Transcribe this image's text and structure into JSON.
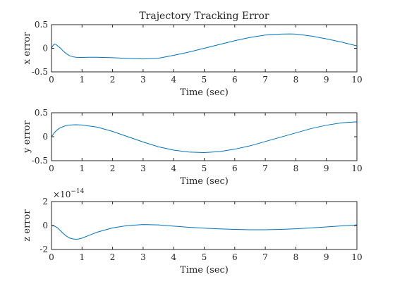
{
  "chart_data": [
    {
      "type": "line",
      "title": "Trajectory Tracking Error",
      "xlabel": "Time (sec)",
      "ylabel": "x error",
      "xlim": [
        0,
        10
      ],
      "ylim": [
        -0.5,
        0.5
      ],
      "xticks": [
        "0",
        "1",
        "2",
        "3",
        "4",
        "5",
        "6",
        "7",
        "8",
        "9",
        "10"
      ],
      "yticks": [
        "-0.5",
        "0",
        "0.5"
      ],
      "exponent_label": "",
      "line_color": "#0072bd",
      "grid": false,
      "series": [
        {
          "x": [
            0,
            0.05,
            0.1,
            0.15,
            0.2,
            0.3,
            0.4,
            0.5,
            0.6,
            0.7,
            0.8,
            0.9,
            1.0,
            1.2,
            1.5,
            2.0,
            2.5,
            3.0,
            3.5,
            4.0,
            4.5,
            5.0,
            5.5,
            6.0,
            6.5,
            7.0,
            7.5,
            7.8,
            8.0,
            8.5,
            9.0,
            9.5,
            10.0
          ],
          "y": [
            0,
            0.06,
            0.09,
            0.08,
            0.05,
            0.0,
            -0.07,
            -0.12,
            -0.16,
            -0.18,
            -0.19,
            -0.195,
            -0.195,
            -0.19,
            -0.19,
            -0.2,
            -0.215,
            -0.225,
            -0.21,
            -0.15,
            -0.08,
            0.0,
            0.08,
            0.16,
            0.23,
            0.28,
            0.3,
            0.305,
            0.3,
            0.26,
            0.2,
            0.13,
            0.05
          ]
        }
      ]
    },
    {
      "type": "line",
      "title": "",
      "xlabel": "Time (sec)",
      "ylabel": "y error",
      "xlim": [
        0,
        10
      ],
      "ylim": [
        -0.5,
        0.5
      ],
      "xticks": [
        "0",
        "1",
        "2",
        "3",
        "4",
        "5",
        "6",
        "7",
        "8",
        "9",
        "10"
      ],
      "yticks": [
        "-0.5",
        "0",
        "0.5"
      ],
      "exponent_label": "",
      "line_color": "#0072bd",
      "grid": false,
      "series": [
        {
          "x": [
            0,
            0.1,
            0.2,
            0.3,
            0.4,
            0.5,
            0.6,
            0.8,
            1.0,
            1.5,
            2.0,
            2.5,
            3.0,
            3.5,
            4.0,
            4.5,
            5.0,
            5.5,
            6.0,
            6.5,
            7.0,
            7.5,
            8.0,
            8.5,
            9.0,
            9.5,
            10.0
          ],
          "y": [
            0,
            0.09,
            0.15,
            0.19,
            0.215,
            0.235,
            0.245,
            0.25,
            0.245,
            0.2,
            0.11,
            0.0,
            -0.11,
            -0.21,
            -0.28,
            -0.32,
            -0.33,
            -0.31,
            -0.26,
            -0.19,
            -0.1,
            -0.01,
            0.08,
            0.17,
            0.24,
            0.29,
            0.31
          ]
        }
      ]
    },
    {
      "type": "line",
      "title": "",
      "xlabel": "Time (sec)",
      "ylabel": "z error",
      "xlim": [
        0,
        10
      ],
      "ylim": [
        -2,
        2
      ],
      "xticks": [
        "0",
        "1",
        "2",
        "3",
        "4",
        "5",
        "6",
        "7",
        "8",
        "9",
        "10"
      ],
      "yticks": [
        "-2",
        "0",
        "2"
      ],
      "exponent_label": "×10",
      "exponent_power": "−14",
      "line_color": "#0072bd",
      "grid": false,
      "series": [
        {
          "x": [
            0,
            0.1,
            0.2,
            0.3,
            0.4,
            0.5,
            0.6,
            0.7,
            0.8,
            0.9,
            1.0,
            1.2,
            1.5,
            2.0,
            2.5,
            3.0,
            3.5,
            4.0,
            4.5,
            5.0,
            5.5,
            6.0,
            6.5,
            7.0,
            7.5,
            8.0,
            8.5,
            9.0,
            9.5,
            10.0
          ],
          "y": [
            0,
            -0.05,
            -0.2,
            -0.45,
            -0.7,
            -0.9,
            -1.05,
            -1.12,
            -1.15,
            -1.12,
            -1.05,
            -0.85,
            -0.55,
            -0.2,
            0.0,
            0.08,
            0.05,
            -0.05,
            -0.15,
            -0.22,
            -0.28,
            -0.32,
            -0.35,
            -0.35,
            -0.32,
            -0.27,
            -0.2,
            -0.12,
            -0.03,
            0.05
          ]
        }
      ]
    }
  ]
}
